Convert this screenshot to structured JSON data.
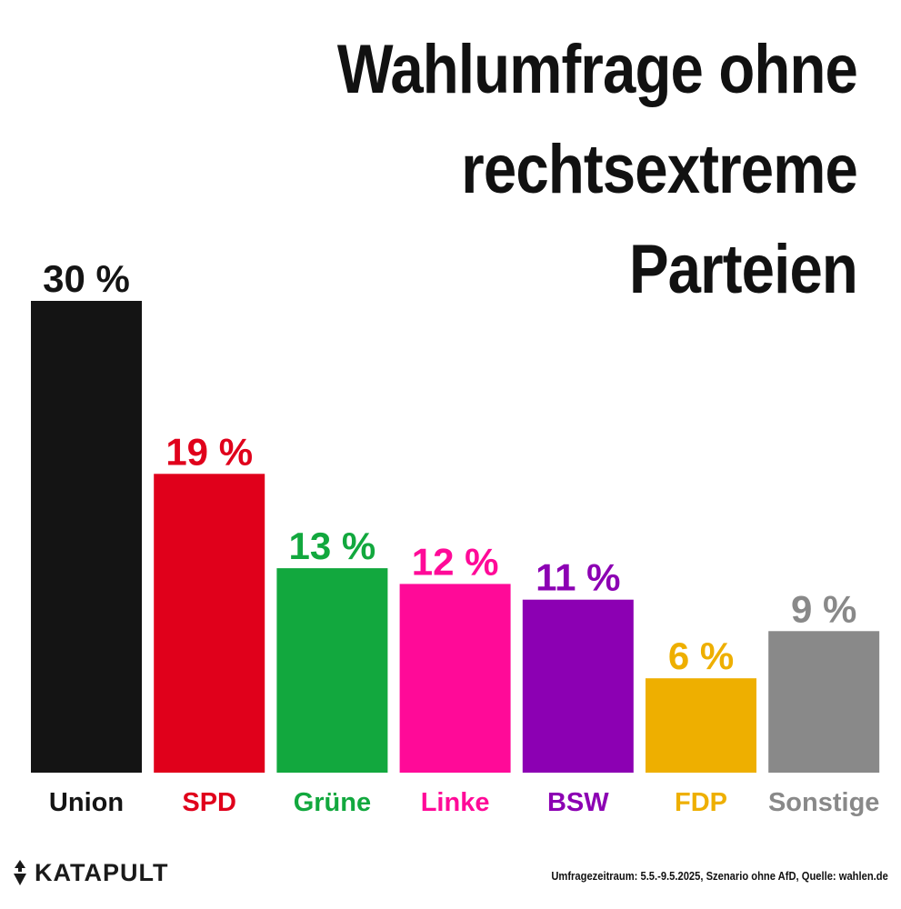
{
  "title_lines": [
    "Wahlumfrage ohne",
    "rechtsextreme",
    "Parteien"
  ],
  "chart_data": {
    "type": "bar",
    "title": "Wahlumfrage ohne rechtsextreme Parteien",
    "categories": [
      "Union",
      "SPD",
      "Grüne",
      "Linke",
      "BSW",
      "FDP",
      "Sonstige"
    ],
    "values": [
      30,
      19,
      13,
      12,
      11,
      6,
      9
    ],
    "value_labels": [
      "30 %",
      "19 %",
      "13 %",
      "12 %",
      "11 %",
      "6 %",
      "9 %"
    ],
    "colors": [
      "#141414",
      "#e0001b",
      "#12a83e",
      "#ff0a98",
      "#8c00b3",
      "#eeaf00",
      "#898989"
    ],
    "unit": "%",
    "ylim": [
      0,
      30
    ],
    "grid": false,
    "legend": "none"
  },
  "logo": {
    "text": "KATAPULT",
    "icon": "katapult-logo-icon"
  },
  "source_note": "Umfragezeitraum: 5.5.-9.5.2025, Szenario ohne AfD, Quelle: wahlen.de"
}
